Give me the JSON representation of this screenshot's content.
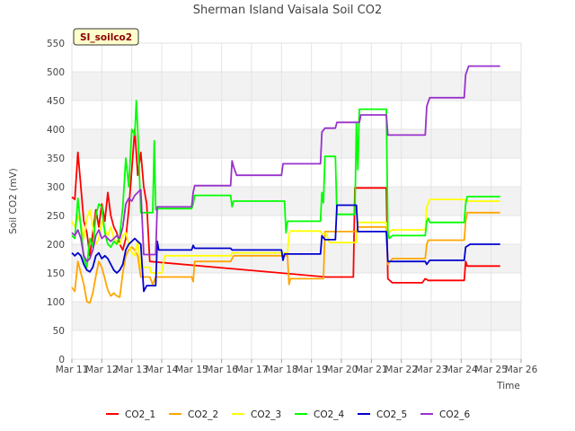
{
  "chart_data": {
    "type": "line",
    "title": "Sherman Island Vaisala Soil CO2",
    "xlabel": "Time",
    "ylabel": "Soil CO2 (mV)",
    "site_badge": "SI_soilco2",
    "ylim": [
      0,
      550
    ],
    "yticks": [
      0,
      50,
      100,
      150,
      200,
      250,
      300,
      350,
      400,
      450,
      500,
      550
    ],
    "xlim": [
      0,
      15
    ],
    "xticks": [
      0,
      1,
      2,
      3,
      4,
      5,
      6,
      7,
      8,
      9,
      10,
      11,
      12,
      13,
      14,
      15
    ],
    "xtick_labels": [
      "Mar 11",
      "Mar 12",
      "Mar 13",
      "Mar 14",
      "Mar 15",
      "Mar 16",
      "Mar 17",
      "Mar 18",
      "Mar 19",
      "Mar 20",
      "Mar 21",
      "Mar 22",
      "Mar 23",
      "Mar 24",
      "Mar 25",
      "Mar 26"
    ],
    "grid": true,
    "legend_position": "bottom",
    "series": [
      {
        "name": "CO2_1",
        "color": "#ff0000",
        "points": [
          [
            0.0,
            282
          ],
          [
            0.1,
            278
          ],
          [
            0.2,
            360
          ],
          [
            0.3,
            300
          ],
          [
            0.4,
            240
          ],
          [
            0.5,
            220
          ],
          [
            0.6,
            180
          ],
          [
            0.7,
            220
          ],
          [
            0.8,
            260
          ],
          [
            0.9,
            230
          ],
          [
            1.0,
            270
          ],
          [
            1.1,
            240
          ],
          [
            1.2,
            290
          ],
          [
            1.3,
            250
          ],
          [
            1.4,
            230
          ],
          [
            1.5,
            220
          ],
          [
            1.6,
            200
          ],
          [
            1.7,
            190
          ],
          [
            1.8,
            210
          ],
          [
            1.9,
            260
          ],
          [
            2.0,
            330
          ],
          [
            2.1,
            400
          ],
          [
            2.2,
            320
          ],
          [
            2.3,
            360
          ],
          [
            2.4,
            300
          ],
          [
            2.5,
            270
          ],
          [
            2.6,
            170
          ],
          [
            8.5,
            143
          ],
          [
            9.0,
            143
          ],
          [
            9.4,
            143
          ],
          [
            9.45,
            298
          ],
          [
            10.5,
            298
          ],
          [
            10.55,
            140
          ],
          [
            10.7,
            133
          ],
          [
            11.7,
            133
          ],
          [
            11.8,
            140
          ],
          [
            11.9,
            137
          ],
          [
            13.1,
            137
          ],
          [
            13.15,
            170
          ],
          [
            13.2,
            162
          ],
          [
            14.3,
            162
          ]
        ]
      },
      {
        "name": "CO2_2",
        "color": "#ffa500",
        "points": [
          [
            0.0,
            125
          ],
          [
            0.1,
            118
          ],
          [
            0.2,
            170
          ],
          [
            0.3,
            150
          ],
          [
            0.4,
            130
          ],
          [
            0.5,
            100
          ],
          [
            0.6,
            98
          ],
          [
            0.7,
            115
          ],
          [
            0.8,
            145
          ],
          [
            0.9,
            170
          ],
          [
            1.0,
            160
          ],
          [
            1.1,
            140
          ],
          [
            1.2,
            120
          ],
          [
            1.3,
            110
          ],
          [
            1.4,
            115
          ],
          [
            1.5,
            110
          ],
          [
            1.6,
            108
          ],
          [
            1.7,
            150
          ],
          [
            1.8,
            180
          ],
          [
            1.9,
            190
          ],
          [
            2.0,
            195
          ],
          [
            2.1,
            190
          ],
          [
            2.2,
            180
          ],
          [
            2.3,
            143
          ],
          [
            2.6,
            143
          ],
          [
            2.7,
            130
          ],
          [
            2.8,
            143
          ],
          [
            4.0,
            143
          ],
          [
            4.05,
            135
          ],
          [
            4.1,
            170
          ],
          [
            5.3,
            170
          ],
          [
            5.4,
            180
          ],
          [
            7.2,
            180
          ],
          [
            7.25,
            130
          ],
          [
            7.3,
            140
          ],
          [
            8.4,
            140
          ],
          [
            8.45,
            222
          ],
          [
            9.5,
            222
          ],
          [
            9.55,
            230
          ],
          [
            10.5,
            230
          ],
          [
            10.55,
            165
          ],
          [
            10.7,
            175
          ],
          [
            11.8,
            175
          ],
          [
            11.85,
            200
          ],
          [
            11.9,
            207
          ],
          [
            13.1,
            207
          ],
          [
            13.15,
            240
          ],
          [
            13.2,
            255
          ],
          [
            14.3,
            255
          ]
        ]
      },
      {
        "name": "CO2_3",
        "color": "#ffff00",
        "points": [
          [
            0.0,
            240
          ],
          [
            0.1,
            230
          ],
          [
            0.2,
            250
          ],
          [
            0.3,
            235
          ],
          [
            0.4,
            210
          ],
          [
            0.5,
            245
          ],
          [
            0.6,
            260
          ],
          [
            0.7,
            230
          ],
          [
            0.8,
            200
          ],
          [
            0.9,
            210
          ],
          [
            1.0,
            240
          ],
          [
            1.1,
            225
          ],
          [
            1.2,
            215
          ],
          [
            1.3,
            230
          ],
          [
            1.4,
            210
          ],
          [
            1.5,
            205
          ],
          [
            1.6,
            200
          ],
          [
            1.7,
            215
          ],
          [
            1.8,
            220
          ],
          [
            1.9,
            200
          ],
          [
            2.0,
            185
          ],
          [
            2.1,
            180
          ],
          [
            2.2,
            205
          ],
          [
            2.3,
            160
          ],
          [
            2.6,
            160
          ],
          [
            2.65,
            150
          ],
          [
            3.0,
            150
          ],
          [
            3.1,
            180
          ],
          [
            5.3,
            180
          ],
          [
            5.35,
            185
          ],
          [
            7.2,
            185
          ],
          [
            7.25,
            218
          ],
          [
            7.3,
            223
          ],
          [
            8.3,
            223
          ],
          [
            8.35,
            218
          ],
          [
            8.5,
            218
          ],
          [
            8.6,
            203
          ],
          [
            9.5,
            203
          ],
          [
            9.55,
            238
          ],
          [
            10.5,
            238
          ],
          [
            10.55,
            220
          ],
          [
            10.7,
            225
          ],
          [
            11.8,
            225
          ],
          [
            11.85,
            265
          ],
          [
            11.95,
            278
          ],
          [
            13.1,
            278
          ],
          [
            13.15,
            275
          ],
          [
            14.3,
            275
          ]
        ]
      },
      {
        "name": "CO2_4",
        "color": "#00ff00",
        "points": [
          [
            0.0,
            215
          ],
          [
            0.1,
            210
          ],
          [
            0.2,
            280
          ],
          [
            0.3,
            230
          ],
          [
            0.4,
            175
          ],
          [
            0.5,
            160
          ],
          [
            0.6,
            210
          ],
          [
            0.7,
            195
          ],
          [
            0.8,
            250
          ],
          [
            0.9,
            270
          ],
          [
            1.0,
            265
          ],
          [
            1.1,
            220
          ],
          [
            1.2,
            200
          ],
          [
            1.3,
            195
          ],
          [
            1.4,
            205
          ],
          [
            1.5,
            200
          ],
          [
            1.6,
            215
          ],
          [
            1.7,
            265
          ],
          [
            1.8,
            350
          ],
          [
            1.9,
            300
          ],
          [
            2.0,
            400
          ],
          [
            2.1,
            390
          ],
          [
            2.15,
            450
          ],
          [
            2.2,
            400
          ],
          [
            2.3,
            255
          ],
          [
            2.5,
            255
          ],
          [
            2.7,
            255
          ],
          [
            2.75,
            380
          ],
          [
            2.8,
            260
          ],
          [
            2.9,
            262
          ],
          [
            3.0,
            262
          ],
          [
            4.0,
            262
          ],
          [
            4.05,
            270
          ],
          [
            4.1,
            285
          ],
          [
            5.3,
            285
          ],
          [
            5.35,
            265
          ],
          [
            5.4,
            275
          ],
          [
            7.1,
            275
          ],
          [
            7.15,
            220
          ],
          [
            7.2,
            240
          ],
          [
            8.3,
            240
          ],
          [
            8.35,
            290
          ],
          [
            8.4,
            272
          ],
          [
            8.45,
            353
          ],
          [
            8.8,
            353
          ],
          [
            8.85,
            252
          ],
          [
            9.45,
            252
          ],
          [
            9.5,
            410
          ],
          [
            9.55,
            330
          ],
          [
            9.6,
            435
          ],
          [
            10.5,
            435
          ],
          [
            10.55,
            220
          ],
          [
            10.6,
            210
          ],
          [
            10.7,
            215
          ],
          [
            11.8,
            215
          ],
          [
            11.85,
            240
          ],
          [
            11.9,
            245
          ],
          [
            11.95,
            238
          ],
          [
            13.1,
            238
          ],
          [
            13.15,
            270
          ],
          [
            13.2,
            283
          ],
          [
            14.3,
            283
          ]
        ]
      },
      {
        "name": "CO2_5",
        "color": "#0000cd",
        "points": [
          [
            0.0,
            185
          ],
          [
            0.1,
            180
          ],
          [
            0.2,
            185
          ],
          [
            0.3,
            180
          ],
          [
            0.4,
            165
          ],
          [
            0.5,
            155
          ],
          [
            0.6,
            152
          ],
          [
            0.7,
            160
          ],
          [
            0.8,
            180
          ],
          [
            0.9,
            185
          ],
          [
            1.0,
            175
          ],
          [
            1.1,
            180
          ],
          [
            1.2,
            175
          ],
          [
            1.3,
            165
          ],
          [
            1.4,
            155
          ],
          [
            1.5,
            150
          ],
          [
            1.6,
            155
          ],
          [
            1.7,
            165
          ],
          [
            1.8,
            190
          ],
          [
            1.9,
            200
          ],
          [
            2.0,
            205
          ],
          [
            2.1,
            210
          ],
          [
            2.2,
            205
          ],
          [
            2.3,
            200
          ],
          [
            2.4,
            118
          ],
          [
            2.5,
            128
          ],
          [
            2.6,
            128
          ],
          [
            2.8,
            128
          ],
          [
            2.85,
            205
          ],
          [
            2.9,
            190
          ],
          [
            4.0,
            190
          ],
          [
            4.05,
            198
          ],
          [
            4.1,
            193
          ],
          [
            5.3,
            193
          ],
          [
            5.35,
            190
          ],
          [
            7.0,
            190
          ],
          [
            7.05,
            172
          ],
          [
            7.1,
            183
          ],
          [
            8.3,
            183
          ],
          [
            8.35,
            215
          ],
          [
            8.45,
            208
          ],
          [
            8.8,
            208
          ],
          [
            8.85,
            268
          ],
          [
            9.5,
            268
          ],
          [
            9.55,
            222
          ],
          [
            10.5,
            222
          ],
          [
            10.55,
            170
          ],
          [
            11.8,
            170
          ],
          [
            11.85,
            165
          ],
          [
            11.95,
            172
          ],
          [
            13.1,
            172
          ],
          [
            13.15,
            195
          ],
          [
            13.3,
            200
          ],
          [
            14.3,
            200
          ]
        ]
      },
      {
        "name": "CO2_6",
        "color": "#9932cc",
        "points": [
          [
            0.0,
            220
          ],
          [
            0.1,
            215
          ],
          [
            0.2,
            225
          ],
          [
            0.3,
            210
          ],
          [
            0.4,
            180
          ],
          [
            0.5,
            170
          ],
          [
            0.6,
            175
          ],
          [
            0.7,
            190
          ],
          [
            0.8,
            215
          ],
          [
            0.9,
            225
          ],
          [
            1.0,
            210
          ],
          [
            1.1,
            215
          ],
          [
            1.2,
            210
          ],
          [
            1.3,
            205
          ],
          [
            1.4,
            210
          ],
          [
            1.5,
            215
          ],
          [
            1.6,
            210
          ],
          [
            1.7,
            230
          ],
          [
            1.8,
            270
          ],
          [
            1.9,
            280
          ],
          [
            2.0,
            275
          ],
          [
            2.1,
            285
          ],
          [
            2.2,
            290
          ],
          [
            2.3,
            295
          ],
          [
            2.4,
            182
          ],
          [
            2.8,
            182
          ],
          [
            2.85,
            265
          ],
          [
            4.0,
            265
          ],
          [
            4.05,
            290
          ],
          [
            4.1,
            302
          ],
          [
            5.3,
            302
          ],
          [
            5.35,
            345
          ],
          [
            5.4,
            335
          ],
          [
            5.5,
            320
          ],
          [
            7.0,
            320
          ],
          [
            7.05,
            340
          ],
          [
            8.3,
            340
          ],
          [
            8.35,
            395
          ],
          [
            8.45,
            402
          ],
          [
            8.8,
            402
          ],
          [
            8.85,
            412
          ],
          [
            9.6,
            412
          ],
          [
            9.65,
            425
          ],
          [
            10.5,
            425
          ],
          [
            10.55,
            390
          ],
          [
            11.8,
            390
          ],
          [
            11.85,
            440
          ],
          [
            11.95,
            455
          ],
          [
            13.1,
            455
          ],
          [
            13.15,
            495
          ],
          [
            13.25,
            510
          ],
          [
            14.3,
            510
          ]
        ]
      }
    ]
  }
}
